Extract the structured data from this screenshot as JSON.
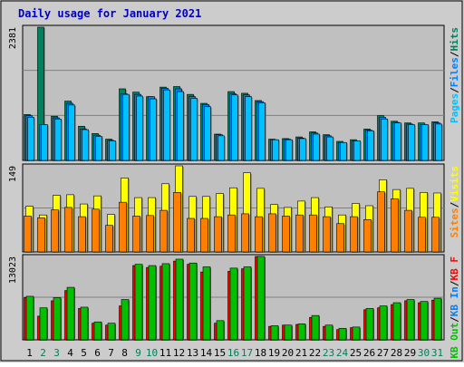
{
  "title": "Daily usage for January 2021",
  "colors": {
    "background": "#cccccc",
    "panel": "#c0c0c0",
    "title": "#0000c0",
    "hits": "#00805c",
    "files": "#0080ff",
    "pages": "#00c0ff",
    "visits": "#ffff00",
    "sites": "#ff8000",
    "kb_in": "#0080ff",
    "kb_out": "#00c000",
    "kb_f": "#ff0000",
    "grid": "#808080",
    "weekend_label": "#00805c"
  },
  "chart_data": [
    {
      "type": "bar",
      "title": "Daily usage for January 2021",
      "ylabel_max": "2381",
      "legend": [
        "Hits",
        "Files",
        "Pages"
      ],
      "legend_position": "right",
      "categories": [
        "1",
        "2",
        "3",
        "4",
        "5",
        "6",
        "7",
        "8",
        "9",
        "10",
        "11",
        "12",
        "13",
        "14",
        "15",
        "16",
        "17",
        "18",
        "19",
        "20",
        "21",
        "22",
        "23",
        "24",
        "25",
        "26",
        "27",
        "28",
        "29",
        "30",
        "31"
      ],
      "ylim": [
        0,
        2381
      ],
      "grid": true,
      "series": [
        {
          "name": "Hits",
          "values": [
            820,
            2381,
            790,
            1060,
            610,
            480,
            380,
            1280,
            1220,
            1140,
            1310,
            1320,
            1180,
            1020,
            470,
            1230,
            1200,
            1070,
            380,
            390,
            420,
            510,
            460,
            340,
            370,
            560,
            800,
            700,
            670,
            670,
            690
          ]
        },
        {
          "name": "Files",
          "values": [
            800,
            640,
            760,
            1020,
            560,
            450,
            360,
            1190,
            1180,
            1140,
            1290,
            1280,
            1140,
            1000,
            460,
            1190,
            1170,
            1050,
            370,
            380,
            400,
            490,
            440,
            320,
            350,
            540,
            770,
            680,
            650,
            640,
            670
          ]
        },
        {
          "name": "Pages",
          "values": [
            770,
            640,
            740,
            990,
            550,
            430,
            350,
            1180,
            1150,
            1100,
            1260,
            1230,
            1110,
            960,
            440,
            1170,
            1140,
            1030,
            370,
            370,
            390,
            470,
            420,
            320,
            350,
            530,
            740,
            670,
            640,
            640,
            650
          ]
        }
      ]
    },
    {
      "type": "bar",
      "ylabel_max": "149",
      "legend": [
        "Visits",
        "Sites"
      ],
      "legend_position": "right",
      "categories": [
        "1",
        "2",
        "3",
        "4",
        "5",
        "6",
        "7",
        "8",
        "9",
        "10",
        "11",
        "12",
        "13",
        "14",
        "15",
        "16",
        "17",
        "18",
        "19",
        "20",
        "21",
        "22",
        "23",
        "24",
        "25",
        "26",
        "27",
        "28",
        "29",
        "30",
        "31"
      ],
      "ylim": [
        0,
        149
      ],
      "grid": true,
      "series": [
        {
          "name": "Visits",
          "values": [
            79,
            64,
            98,
            99,
            83,
            97,
            65,
            128,
            94,
            94,
            118,
            149,
            96,
            96,
            101,
            111,
            137,
            110,
            82,
            77,
            88,
            94,
            78,
            64,
            84,
            80,
            125,
            108,
            110,
            103,
            102
          ]
        },
        {
          "name": "Sites",
          "values": [
            62,
            59,
            73,
            77,
            61,
            74,
            46,
            86,
            62,
            63,
            72,
            103,
            58,
            58,
            61,
            64,
            66,
            61,
            66,
            62,
            64,
            64,
            61,
            49,
            61,
            56,
            104,
            92,
            72,
            60,
            60
          ]
        }
      ]
    },
    {
      "type": "bar",
      "ylabel_max": "13023",
      "legend": [
        "KB F",
        "KB In",
        "KB Out"
      ],
      "legend_position": "right",
      "categories": [
        "1",
        "2",
        "3",
        "4",
        "5",
        "6",
        "7",
        "8",
        "9",
        "10",
        "11",
        "12",
        "13",
        "14",
        "15",
        "16",
        "17",
        "18",
        "19",
        "20",
        "21",
        "22",
        "23",
        "24",
        "25",
        "26",
        "27",
        "28",
        "29",
        "30",
        "31"
      ],
      "ylim": [
        0,
        13023
      ],
      "grid": true,
      "series": [
        {
          "name": "KB F",
          "values": [
            6600,
            3700,
            6100,
            7700,
            4900,
            2600,
            2300,
            5300,
            11600,
            11300,
            11500,
            12300,
            11800,
            10600,
            2600,
            10700,
            11100,
            13023,
            2100,
            2300,
            2400,
            3500,
            2100,
            1600,
            1900,
            4700,
            5000,
            5500,
            6100,
            5800,
            6200
          ]
        },
        {
          "name": "KB In",
          "values": [
            0,
            0,
            0,
            0,
            0,
            0,
            0,
            0,
            0,
            0,
            0,
            0,
            0,
            0,
            0,
            0,
            0,
            0,
            0,
            0,
            0,
            0,
            0,
            0,
            0,
            0,
            0,
            0,
            0,
            0,
            0
          ]
        },
        {
          "name": "KB Out",
          "values": [
            6800,
            5000,
            6600,
            8200,
            5100,
            2800,
            2600,
            6300,
            11800,
            11600,
            11900,
            12600,
            12000,
            11400,
            3000,
            11200,
            11400,
            13023,
            2200,
            2300,
            2500,
            3800,
            2300,
            1800,
            2000,
            4900,
            5300,
            5800,
            6300,
            6000,
            6500
          ]
        }
      ]
    }
  ]
}
